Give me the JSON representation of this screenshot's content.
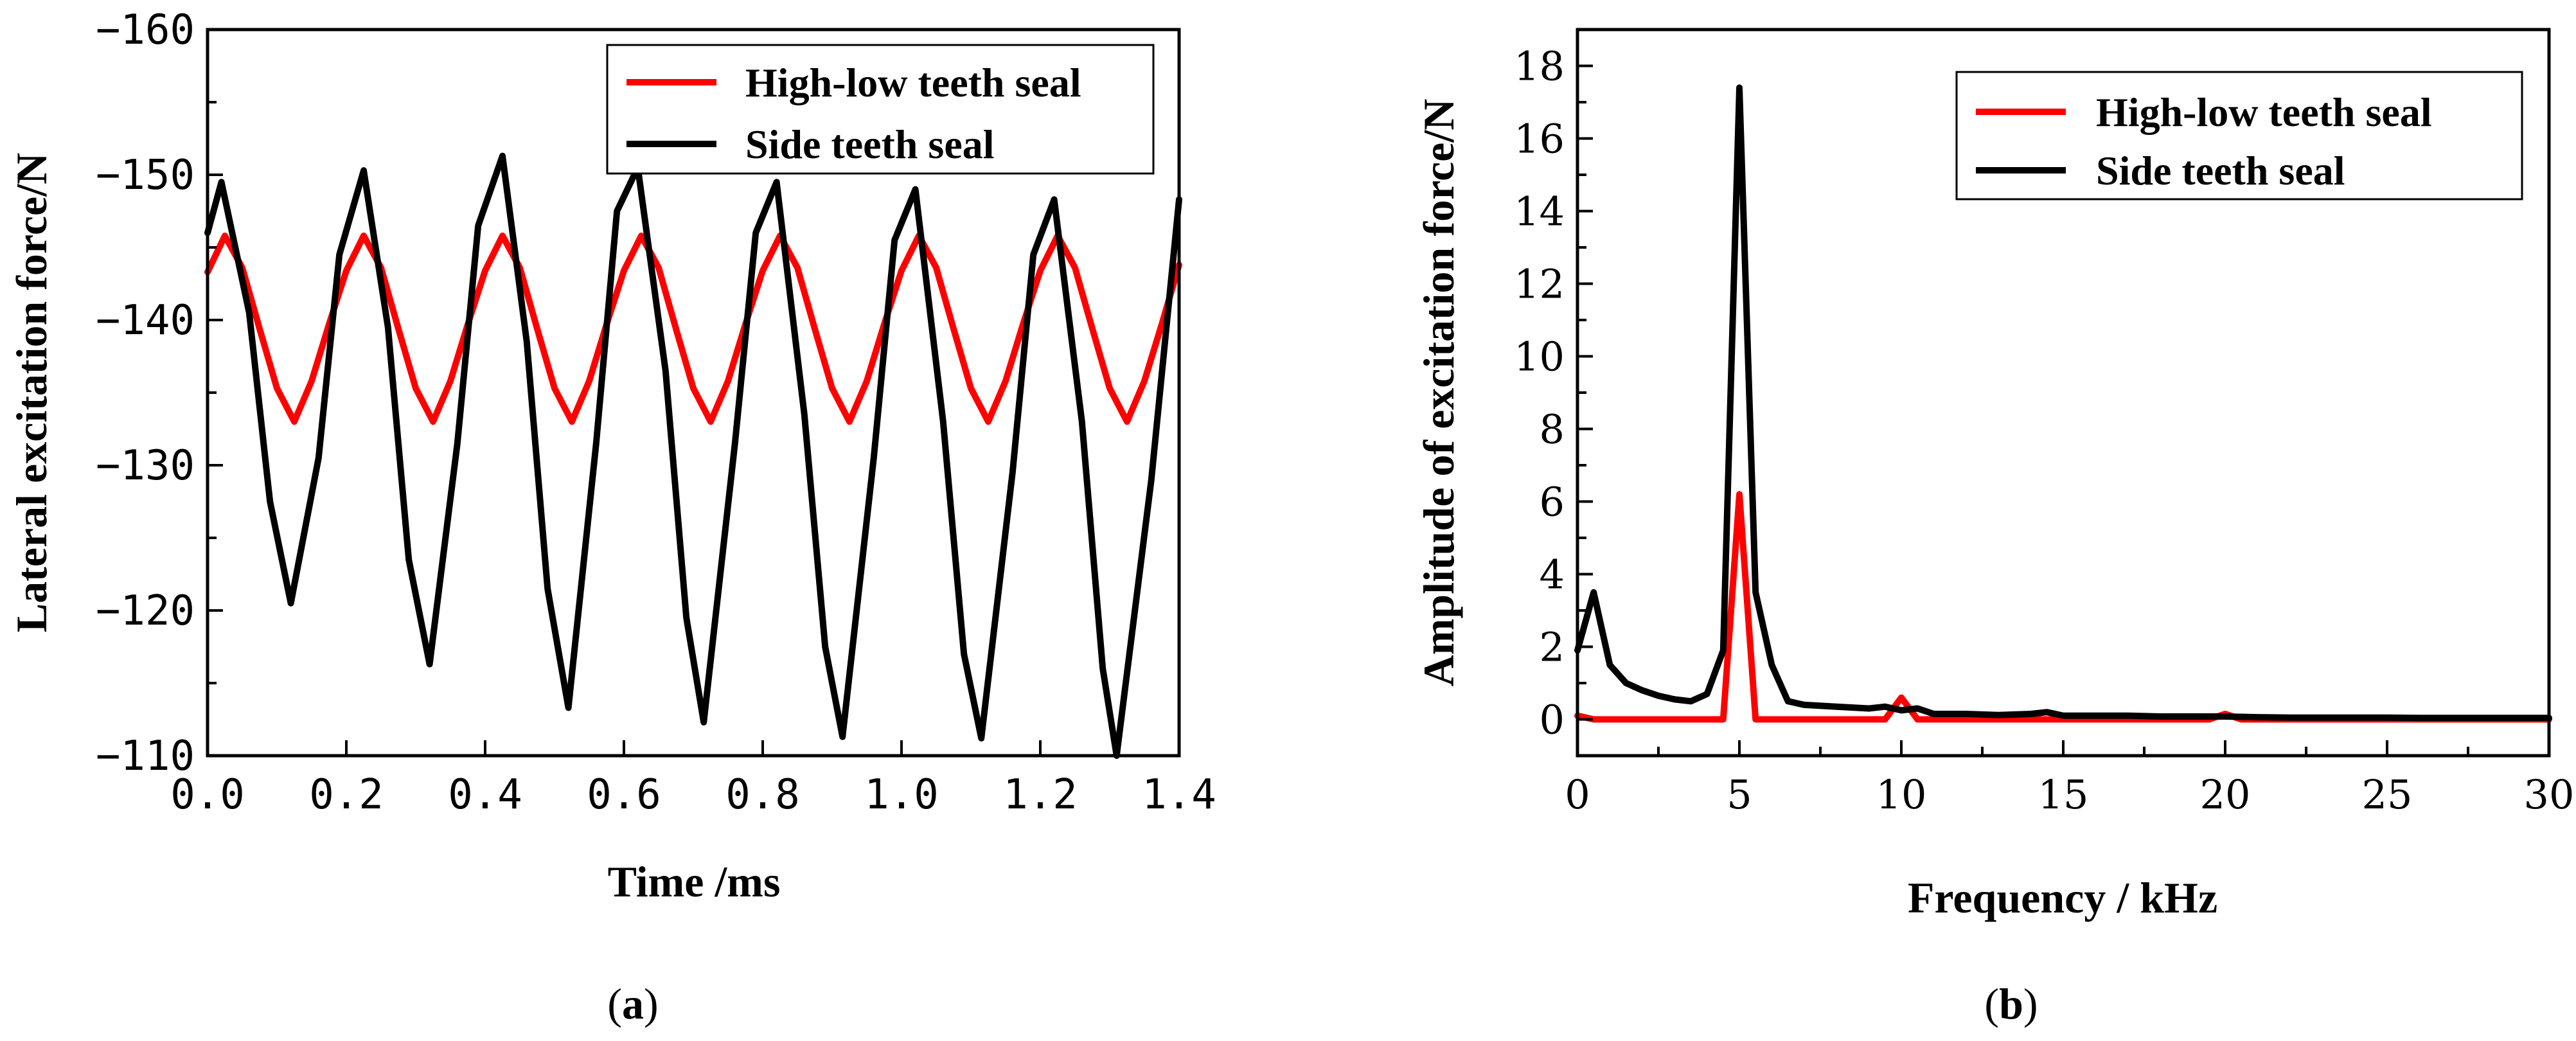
{
  "chart_data": [
    {
      "type": "line",
      "panel": "a",
      "caption_open": "(",
      "caption_letter": "a",
      "caption_close": ")",
      "xlabel": "Time /ms",
      "ylabel": "Lateral excitation force/N",
      "xlim": [
        0.0,
        1.4
      ],
      "ylim": [
        -110,
        -160
      ],
      "y_inverted": true,
      "x_ticks": [
        0.0,
        0.2,
        0.4,
        0.6,
        0.8,
        1.0,
        1.2,
        1.4
      ],
      "x_tick_labels": [
        "0.0",
        "0.2",
        "0.4",
        "0.6",
        "0.8",
        "1.0",
        "1.2",
        "1.4"
      ],
      "y_ticks": [
        -160,
        -150,
        -140,
        -130,
        -120,
        -110
      ],
      "y_tick_labels": [
        "−160",
        "−150",
        "−140",
        "−130",
        "−120",
        "−110"
      ],
      "legend_position": "top-right",
      "series": [
        {
          "name": "High-low teeth seal",
          "color": "#ff0000",
          "x": [
            0.0,
            0.025,
            0.05,
            0.075,
            0.1,
            0.125,
            0.15,
            0.175,
            0.2,
            0.225,
            0.25,
            0.275,
            0.3,
            0.325,
            0.35,
            0.375,
            0.4,
            0.425,
            0.45,
            0.475,
            0.5,
            0.525,
            0.55,
            0.575,
            0.6,
            0.625,
            0.65,
            0.675,
            0.7,
            0.725,
            0.75,
            0.775,
            0.8,
            0.825,
            0.85,
            0.875,
            0.9,
            0.925,
            0.95,
            0.975,
            1.0,
            1.025,
            1.05,
            1.075,
            1.1,
            1.125,
            1.15,
            1.175,
            1.2,
            1.225,
            1.25,
            1.275,
            1.3,
            1.325,
            1.35,
            1.375,
            1.4
          ],
          "values": [
            -143.3,
            -145.8,
            -143.6,
            -139.4,
            -135.3,
            -133.0,
            -135.8,
            -139.7,
            -143.4,
            -145.8,
            -143.6,
            -139.4,
            -135.3,
            -133.0,
            -135.8,
            -139.7,
            -143.4,
            -145.8,
            -143.6,
            -139.4,
            -135.3,
            -133.0,
            -135.8,
            -139.7,
            -143.4,
            -145.8,
            -143.6,
            -139.4,
            -135.3,
            -133.0,
            -135.8,
            -139.7,
            -143.4,
            -145.8,
            -143.6,
            -139.4,
            -135.3,
            -133.0,
            -135.8,
            -139.7,
            -143.4,
            -145.8,
            -143.6,
            -139.4,
            -135.3,
            -133.0,
            -135.8,
            -139.7,
            -143.4,
            -145.8,
            -143.6,
            -139.4,
            -135.3,
            -133.0,
            -135.8,
            -139.7,
            -143.8
          ]
        },
        {
          "name": "Side teeth seal",
          "color": "#000000",
          "x": [
            0.0,
            0.02,
            0.06,
            0.09,
            0.12,
            0.16,
            0.19,
            0.225,
            0.26,
            0.29,
            0.32,
            0.36,
            0.39,
            0.425,
            0.46,
            0.49,
            0.52,
            0.56,
            0.59,
            0.62,
            0.66,
            0.69,
            0.715,
            0.76,
            0.79,
            0.82,
            0.86,
            0.89,
            0.915,
            0.96,
            0.99,
            1.02,
            1.06,
            1.09,
            1.115,
            1.16,
            1.19,
            1.22,
            1.26,
            1.29,
            1.31,
            1.36,
            1.4
          ],
          "values": [
            -146.0,
            -149.5,
            -140.5,
            -127.5,
            -120.5,
            -130.5,
            -144.5,
            -150.3,
            -139.5,
            -123.5,
            -116.3,
            -131.5,
            -146.5,
            -151.3,
            -138.5,
            -121.5,
            -113.3,
            -131.5,
            -147.5,
            -150.5,
            -136.5,
            -119.5,
            -112.3,
            -131.5,
            -146.0,
            -149.5,
            -133.5,
            -117.5,
            -111.3,
            -130.5,
            -145.5,
            -149.0,
            -133.0,
            -117.0,
            -111.2,
            -129.5,
            -144.5,
            -148.3,
            -133.0,
            -116.0,
            -110.0,
            -129.0,
            -148.3
          ]
        }
      ]
    },
    {
      "type": "line",
      "panel": "b",
      "caption_open": "(",
      "caption_letter": "b",
      "caption_close": ")",
      "xlabel": "Frequency / kHz",
      "ylabel": "Amplitude of excitation force/N",
      "xlim": [
        0,
        30
      ],
      "ylim": [
        -1,
        19
      ],
      "x_ticks": [
        0,
        5,
        10,
        15,
        20,
        25,
        30
      ],
      "x_tick_labels": [
        "0",
        "5",
        "10",
        "15",
        "20",
        "25",
        "30"
      ],
      "y_ticks": [
        0,
        2,
        4,
        6,
        8,
        10,
        12,
        14,
        16,
        18
      ],
      "y_tick_labels": [
        "0",
        "2",
        "4",
        "6",
        "8",
        "10",
        "12",
        "14",
        "16",
        "18"
      ],
      "legend_position": "top-right",
      "series": [
        {
          "name": "High-low teeth seal",
          "color": "#ff0000",
          "x": [
            0,
            0.5,
            1,
            2,
            3,
            4,
            4.5,
            5,
            5.5,
            6,
            7,
            8,
            9,
            9.5,
            10,
            10.5,
            11,
            12,
            14,
            15,
            19,
            19.5,
            20,
            20.5,
            21,
            25,
            30
          ],
          "values": [
            0.1,
            0.0,
            0.0,
            0.0,
            0.0,
            0.0,
            0.0,
            6.2,
            0.0,
            0.0,
            0.0,
            0.0,
            0.0,
            0.0,
            0.6,
            0.0,
            0.0,
            0.0,
            0.0,
            0.0,
            0.0,
            0.0,
            0.15,
            0.0,
            0.0,
            0.0,
            0.0
          ]
        },
        {
          "name": "Side teeth seal",
          "color": "#000000",
          "x": [
            0,
            0.5,
            1,
            1.5,
            2,
            2.5,
            3,
            3.5,
            4,
            4.5,
            5,
            5.5,
            6,
            6.5,
            7,
            8,
            9,
            9.5,
            10,
            10.5,
            11,
            12,
            13,
            14,
            14.5,
            15,
            16,
            17,
            18,
            19,
            20,
            21,
            22,
            23,
            24,
            25,
            26,
            27,
            28,
            29,
            30
          ],
          "values": [
            1.9,
            3.5,
            1.5,
            1.0,
            0.8,
            0.65,
            0.55,
            0.5,
            0.7,
            1.9,
            17.4,
            3.5,
            1.5,
            0.5,
            0.4,
            0.35,
            0.3,
            0.35,
            0.25,
            0.3,
            0.15,
            0.15,
            0.12,
            0.15,
            0.2,
            0.1,
            0.1,
            0.1,
            0.08,
            0.08,
            0.08,
            0.06,
            0.05,
            0.05,
            0.05,
            0.05,
            0.04,
            0.04,
            0.04,
            0.04,
            0.04
          ]
        }
      ]
    }
  ]
}
